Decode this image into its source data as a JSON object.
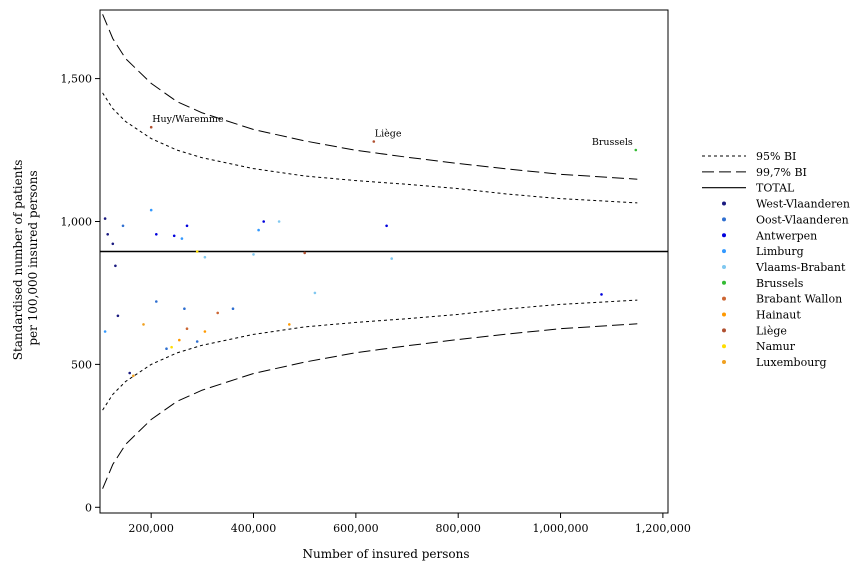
{
  "chart_data": {
    "type": "scatter",
    "title": "",
    "xlabel": "Number of insured persons",
    "ylabel": [
      "Standardised number of patients",
      "per 100,000 insured persons"
    ],
    "xlim": [
      100000,
      1210000
    ],
    "ylim": [
      -20,
      1740
    ],
    "x_ticks": [
      200000,
      400000,
      600000,
      800000,
      1000000,
      1200000
    ],
    "x_tick_labels": [
      "200,000",
      "400,000",
      "600,000",
      "800,000",
      "1,000,000",
      "1,200,000"
    ],
    "y_ticks": [
      0,
      500,
      1000,
      1500
    ],
    "y_tick_labels": [
      "0",
      "500",
      "1,000",
      "1,500"
    ],
    "reference_line": {
      "name": "TOTAL",
      "value": 895
    },
    "bands": [
      {
        "name": "95% BI",
        "style": "short-dash",
        "x": [
          105000,
          125000,
          150000,
          200000,
          250000,
          300000,
          400000,
          500000,
          600000,
          700000,
          800000,
          900000,
          1000000,
          1150000
        ],
        "upper": [
          1450,
          1395,
          1350,
          1290,
          1250,
          1223,
          1185,
          1159,
          1143,
          1130,
          1115,
          1095,
          1080,
          1065
        ],
        "lower": [
          340,
          395,
          440,
          500,
          540,
          567,
          605,
          631,
          647,
          660,
          675,
          695,
          710,
          725
        ]
      },
      {
        "name": "99,7% BI",
        "style": "long-dash",
        "x": [
          105000,
          125000,
          150000,
          200000,
          250000,
          300000,
          400000,
          500000,
          600000,
          700000,
          800000,
          900000,
          1000000,
          1150000
        ],
        "upper": [
          1725,
          1640,
          1570,
          1483,
          1420,
          1380,
          1322,
          1282,
          1249,
          1225,
          1203,
          1183,
          1165,
          1148
        ],
        "lower": [
          65,
          150,
          220,
          307,
          370,
          410,
          468,
          508,
          541,
          565,
          587,
          607,
          625,
          642
        ]
      }
    ],
    "series": [
      {
        "name": "West-Vlaanderen",
        "color": "#1a1a80",
        "points": [
          [
            110000,
            1010
          ],
          [
            115000,
            955
          ],
          [
            125000,
            922
          ],
          [
            130000,
            845
          ],
          [
            135000,
            670
          ],
          [
            158000,
            470
          ]
        ]
      },
      {
        "name": "Oost-Vlaanderen",
        "color": "#2f6fd0",
        "points": [
          [
            145000,
            985
          ],
          [
            210000,
            720
          ],
          [
            230000,
            555
          ],
          [
            265000,
            695
          ],
          [
            290000,
            580
          ],
          [
            360000,
            695
          ]
        ]
      },
      {
        "name": "Antwerpen",
        "color": "#0000dd",
        "points": [
          [
            210000,
            955
          ],
          [
            245000,
            950
          ],
          [
            270000,
            985
          ],
          [
            420000,
            1000
          ],
          [
            660000,
            985
          ],
          [
            1080000,
            745
          ]
        ]
      },
      {
        "name": "Limburg",
        "color": "#3399ff",
        "points": [
          [
            110000,
            615
          ],
          [
            200000,
            1040
          ],
          [
            260000,
            940
          ],
          [
            410000,
            970
          ]
        ]
      },
      {
        "name": "Vlaams-Brabant",
        "color": "#80c8f0",
        "points": [
          [
            305000,
            875
          ],
          [
            400000,
            885
          ],
          [
            450000,
            1000
          ],
          [
            520000,
            750
          ],
          [
            670000,
            870
          ]
        ]
      },
      {
        "name": "Brussels",
        "color": "#33bb33",
        "points": [
          [
            1147000,
            1250
          ]
        ]
      },
      {
        "name": "Brabant Wallon",
        "color": "#cc6633",
        "points": [
          [
            270000,
            625
          ],
          [
            330000,
            680
          ]
        ]
      },
      {
        "name": "Hainaut",
        "color": "#ff9900",
        "points": [
          [
            255000,
            585
          ],
          [
            305000,
            615
          ],
          [
            470000,
            640
          ]
        ]
      },
      {
        "name": "Liège",
        "color": "#b05030",
        "points": [
          [
            200000,
            1330
          ],
          [
            635000,
            1280
          ],
          [
            500000,
            890
          ]
        ]
      },
      {
        "name": "Namur",
        "color": "#ffdd00",
        "points": [
          [
            240000,
            560
          ],
          [
            290000,
            895
          ]
        ]
      },
      {
        "name": "Luxembourg",
        "color": "#f0a020",
        "points": [
          [
            165000,
            460
          ],
          [
            185000,
            640
          ]
        ]
      }
    ],
    "annotations": [
      {
        "text": "Huy/Waremme",
        "x": 200000,
        "y": 1330
      },
      {
        "text": "Liège",
        "x": 635000,
        "y": 1280
      },
      {
        "text": "Brussels",
        "x": 1147000,
        "y": 1250
      }
    ],
    "legend_placement": "right",
    "legend": [
      "95% BI",
      "99,7% BI",
      "TOTAL",
      "West-Vlaanderen",
      "Oost-Vlaanderen",
      "Antwerpen",
      "Limburg",
      "Vlaams-Brabant",
      "Brussels",
      "Brabant Wallon",
      "Hainaut",
      "Liège",
      "Namur",
      "Luxembourg"
    ],
    "grid": false
  }
}
